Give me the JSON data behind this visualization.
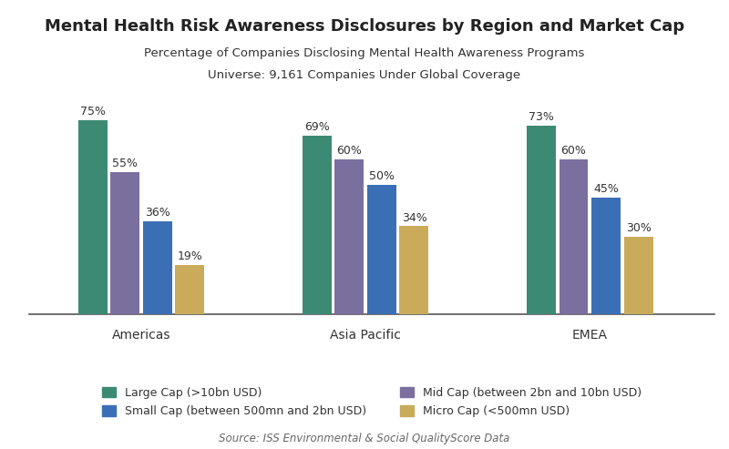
{
  "title": "Mental Health Risk Awareness Disclosures by Region and Market Cap",
  "subtitle1": "Percentage of Companies Disclosing Mental Health Awareness Programs",
  "subtitle2": "Universe: 9,161 Companies Under Global Coverage",
  "source": "Source: ISS Environmental & Social QualityScore Data",
  "regions": [
    "Americas",
    "Asia Pacific",
    "EMEA"
  ],
  "categories": [
    "Large Cap (>10bn USD)",
    "Mid Cap (between 2bn and 10bn USD)",
    "Small Cap (between 500mn and 2bn USD)",
    "Micro Cap (<500mn USD)"
  ],
  "legend_col1": [
    "Large Cap (>10bn USD)",
    "Small Cap (between 500mn and 2bn USD)"
  ],
  "legend_col2": [
    "Mid Cap (between 2bn and 10bn USD)",
    "Micro Cap (<500mn USD)"
  ],
  "values": {
    "Americas": [
      75,
      55,
      36,
      19
    ],
    "Asia Pacific": [
      69,
      60,
      50,
      34
    ],
    "EMEA": [
      73,
      60,
      45,
      30
    ]
  },
  "colors": [
    "#3d8a74",
    "#7b6fa0",
    "#3b6fb5",
    "#c9ab5a"
  ],
  "bar_width": 0.13,
  "ylim": [
    0,
    85
  ],
  "background_color": "#ffffff",
  "title_fontsize": 13,
  "subtitle_fontsize": 9.5,
  "label_fontsize": 9,
  "tick_fontsize": 10,
  "legend_fontsize": 9,
  "source_fontsize": 8.5
}
